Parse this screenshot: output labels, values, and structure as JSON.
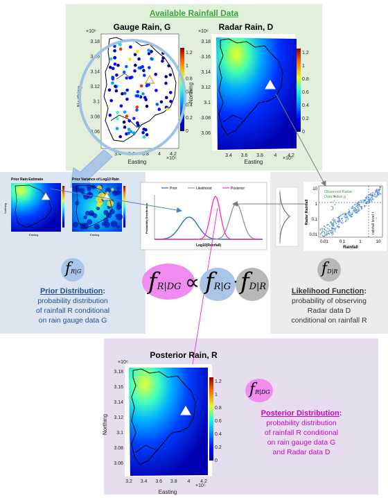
{
  "top_panel": {
    "title": "Available Rainfall Data"
  },
  "gauge_map": {
    "title": "Gauge Rain, G",
    "xlabel": "Easting",
    "ylabel": "Northing",
    "x_exponent": "×10⁵",
    "y_exponent": "×10⁶",
    "x_ticks": [
      "3.2",
      "3.4",
      "3.6",
      "3.8",
      "4",
      "4.2"
    ],
    "y_ticks": [
      "3.18",
      "3.16",
      "3.14",
      "3.12",
      "3.1",
      "3.08",
      "3.06"
    ],
    "colorbar_ticks": [
      "1.2",
      "1",
      "0.8",
      "0.6",
      "0.4",
      "0.2",
      "0"
    ]
  },
  "radar_map": {
    "title": "Radar Rain, D",
    "xlabel": "Easting",
    "ylabel": "Northing",
    "x_exponent": "×10⁵",
    "y_exponent": "×10⁶",
    "x_ticks": [
      "3.4",
      "3.6",
      "3.8",
      "4",
      "4.2"
    ],
    "y_ticks": [
      "3.18",
      "3.16",
      "3.14",
      "3.12",
      "3.1",
      "3.08",
      "3.06"
    ],
    "colorbar_ticks": [
      "1.2",
      "1",
      "0.8",
      "0.6",
      "0.4",
      "0.2",
      "0"
    ]
  },
  "prior_maps": {
    "estimate_title": "Prior Rain Estimate",
    "variance_title": "Prior Variance of Log10 Rain",
    "xlabel": "Easting",
    "ylabel": "Northing"
  },
  "pdf_chart": {
    "legend": [
      "Prior",
      "Likelihood",
      "Posterior"
    ],
    "xlabel": "Log10(Rainfall)",
    "ylabel": "Probability Distribution"
  },
  "scatter_chart": {
    "xlabel": "Rainfall",
    "ylabel": "Radar Rainfall",
    "x_ticks": [
      "0.01",
      "0.1",
      "1",
      "10"
    ],
    "y_ticks": [
      "10",
      "1",
      "0.1",
      "0.01"
    ],
    "annotation": "Observed Radar Data value g",
    "level_label": "rainfall level r"
  },
  "formula": {
    "prior_symbol": "f",
    "prior_sub": "R|G",
    "posterior_symbol": "f",
    "posterior_sub": "R|DG",
    "likelihood_symbol": "f",
    "likelihood_sub": "D|R",
    "propto": "∝",
    "dot": "·"
  },
  "prior_panel": {
    "heading": "Prior Distribution",
    "colon": ":",
    "desc": [
      "probability distribution",
      "of rainfall R conditional",
      "on rain gauge data G"
    ]
  },
  "likelihood_panel": {
    "heading": "Likelihood Function",
    "colon": ":",
    "desc": [
      "probability of observing",
      "Radar data D",
      "conditional on rainfall R"
    ]
  },
  "posterior_panel": {
    "map_title": "Posterior Rain, R",
    "xlabel": "Easting",
    "ylabel": "Northing",
    "x_exponent": "×10⁵",
    "y_exponent": "×10⁶",
    "x_ticks": [
      "3.2",
      "3.4",
      "3.6",
      "3.8",
      "4",
      "4.2"
    ],
    "y_ticks": [
      "3.18",
      "3.16",
      "3.14",
      "3.12",
      "3.1",
      "3.08",
      "3.06"
    ],
    "colorbar_ticks": [
      "1.2",
      "1",
      "0.8",
      "0.6",
      "0.4",
      "0.2",
      "0"
    ],
    "heading": "Posterior Distribution",
    "colon": ":",
    "desc": [
      "probability distribution",
      "of rainfall R conditional",
      "on rain gauge data G",
      "and Radar data D"
    ]
  },
  "colors": {
    "green_title": "#3aa63a",
    "prior_blue": "#1f4e9a",
    "posterior_magenta": "#cc00cc",
    "prior_curve": "#2f6db5",
    "likelihood_curve": "#999999",
    "posterior_curve": "#ff33cc",
    "prior_bubble": "#a9c6e8",
    "likelihood_bubble": "#b8b8b8",
    "posterior_bubble": "#f08cf0"
  }
}
